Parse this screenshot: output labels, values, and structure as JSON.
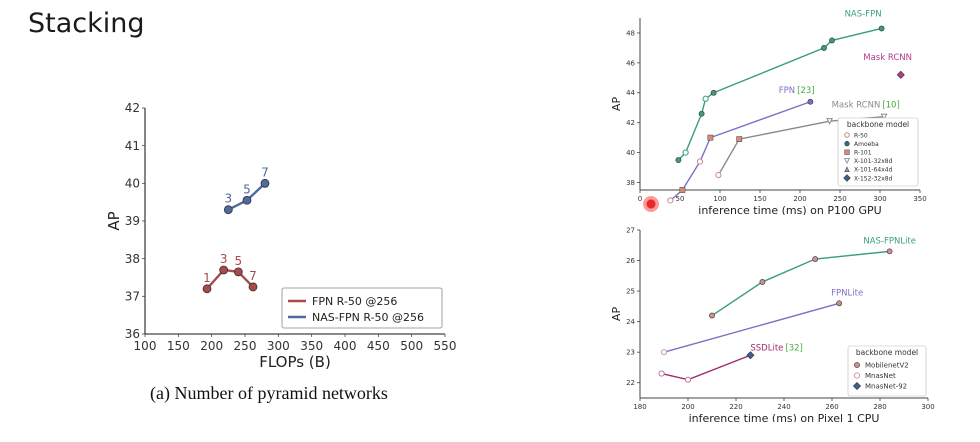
{
  "page": {
    "title": "Stacking",
    "caption": "(a) Number of pyramid networks"
  },
  "chart_data": [
    {
      "id": "pyramid-networks",
      "type": "line",
      "xlabel": "FLOPs (B)",
      "ylabel": "AP",
      "xlim": [
        100,
        550
      ],
      "ylim": [
        36,
        42
      ],
      "xticks": [
        100,
        150,
        200,
        250,
        300,
        350,
        400,
        450,
        500,
        550
      ],
      "yticks": [
        36,
        37,
        38,
        39,
        40,
        41,
        42
      ],
      "grid": false,
      "legend": "bottom-right",
      "series": [
        {
          "name": "FPN R-50 @256",
          "color": "#a94a4a",
          "x": [
            193,
            218,
            240,
            262
          ],
          "y": [
            37.2,
            37.7,
            37.65,
            37.25
          ],
          "labels": [
            "1",
            "3",
            "5",
            "7"
          ]
        },
        {
          "name": "NAS-FPN R-50 @256",
          "color": "#4e6aa0",
          "x": [
            225,
            253,
            280
          ],
          "y": [
            39.3,
            39.55,
            40.0
          ],
          "labels": [
            "3",
            "5",
            "7"
          ]
        }
      ]
    },
    {
      "id": "p100-gpu",
      "type": "line",
      "xlabel": "inference time (ms) on P100 GPU",
      "ylabel": "AP",
      "xlim": [
        0,
        350
      ],
      "ylim": [
        37.5,
        49
      ],
      "xticks": [
        0,
        50,
        100,
        150,
        200,
        250,
        300,
        350
      ],
      "yticks": [
        38,
        40,
        42,
        44,
        46,
        48
      ],
      "grid": false,
      "legend": "bottom-right",
      "legend_title": "backbone model",
      "legend_entries": [
        {
          "label": "R-50",
          "marker": "circle-open",
          "color": "#c98b8b"
        },
        {
          "label": "Amoeba",
          "marker": "circle",
          "color": "#2e6f86"
        },
        {
          "label": "R-101",
          "marker": "square",
          "color": "#d98b74"
        },
        {
          "label": "X-101-32x8d",
          "marker": "triangle-down",
          "color": "#9a9aa8"
        },
        {
          "label": "X-101-64x4d",
          "marker": "triangle-up",
          "color": "#8a9ab0"
        },
        {
          "label": "X-152-32x8d",
          "marker": "diamond",
          "color": "#3f5d91"
        }
      ],
      "series": [
        {
          "name": "NAS-FPN",
          "label_ref": "",
          "color": "#3a9e7c",
          "x": [
            48,
            57,
            77,
            82,
            92,
            230,
            240,
            302
          ],
          "y": [
            39.5,
            40.0,
            42.6,
            43.6,
            44.0,
            47.0,
            47.5,
            48.3
          ],
          "marker": "circle"
        },
        {
          "name": "FPN",
          "label_ref": "23",
          "color": "#7d6fc5",
          "x": [
            38,
            53,
            75,
            88,
            213
          ],
          "y": [
            36.8,
            37.5,
            39.4,
            41.0,
            43.4
          ],
          "marker": "circle"
        },
        {
          "name": "Mask RCNN",
          "label_ref": "10",
          "color": "#8a8a8a",
          "x": [
            98,
            124,
            237,
            305
          ],
          "y": [
            38.5,
            40.9,
            42.1,
            42.4
          ],
          "marker": "triangle"
        },
        {
          "name": "Mask RCNN",
          "label_ref": "",
          "color": "#b23a8a",
          "x": [
            326
          ],
          "y": [
            45.2
          ],
          "marker": "diamond"
        }
      ]
    },
    {
      "id": "pixel1-cpu",
      "type": "line",
      "xlabel": "inference time (ms) on Pixel 1 CPU",
      "ylabel": "AP",
      "xlim": [
        180,
        300
      ],
      "ylim": [
        21.5,
        27
      ],
      "xticks": [
        180,
        200,
        220,
        240,
        260,
        280,
        300
      ],
      "yticks": [
        22,
        23,
        24,
        25,
        26,
        27
      ],
      "grid": false,
      "legend": "bottom-right",
      "legend_title": "backbone model",
      "legend_entries": [
        {
          "label": "MobilenetV2",
          "marker": "circle",
          "color": "#d48c8c"
        },
        {
          "label": "MnasNet",
          "marker": "circle-open",
          "color": "#c9a0a0"
        },
        {
          "label": "MnasNet-92",
          "marker": "diamond",
          "color": "#3f5d91"
        }
      ],
      "series": [
        {
          "name": "NAS-FPNLite",
          "label_ref": "",
          "color": "#3a9e7c",
          "x": [
            210,
            231,
            253,
            284
          ],
          "y": [
            24.2,
            25.3,
            26.05,
            26.3
          ],
          "marker": "circle"
        },
        {
          "name": "FPNLite",
          "label_ref": "",
          "color": "#7d6fc5",
          "x": [
            190,
            263
          ],
          "y": [
            23.0,
            24.6
          ],
          "marker": "circle"
        },
        {
          "name": "SSDLite",
          "label_ref": "32",
          "color": "#a02a6a",
          "x": [
            189,
            200,
            226
          ],
          "y": [
            22.3,
            22.1,
            22.9
          ],
          "marker": "circle"
        }
      ]
    }
  ]
}
